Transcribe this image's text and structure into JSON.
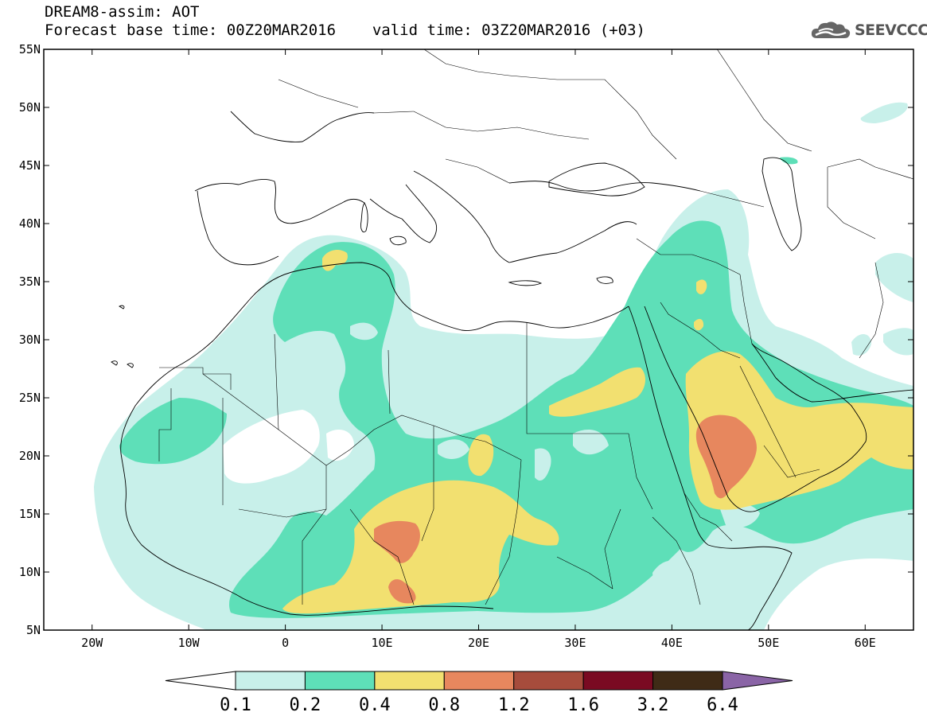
{
  "header": {
    "line1": "DREAM8-assim: AOT",
    "base_time": "Forecast base time: 00Z20MAR2016",
    "valid_time": "valid time: 03Z20MAR2016 (+03)"
  },
  "logo": {
    "text": "SEEVCCC",
    "icon": "cloud-icon"
  },
  "map": {
    "lon_range": [
      -25,
      65
    ],
    "lat_range": [
      5,
      55
    ],
    "lon_ticks": [
      {
        "value": -20,
        "label": "20W"
      },
      {
        "value": -10,
        "label": "10W"
      },
      {
        "value": 0,
        "label": "0"
      },
      {
        "value": 10,
        "label": "10E"
      },
      {
        "value": 20,
        "label": "20E"
      },
      {
        "value": 30,
        "label": "30E"
      },
      {
        "value": 40,
        "label": "40E"
      },
      {
        "value": 50,
        "label": "50E"
      },
      {
        "value": 60,
        "label": "60E"
      }
    ],
    "lat_ticks": [
      {
        "value": 5,
        "label": "5N"
      },
      {
        "value": 10,
        "label": "10N"
      },
      {
        "value": 15,
        "label": "15N"
      },
      {
        "value": 20,
        "label": "20N"
      },
      {
        "value": 25,
        "label": "25N"
      },
      {
        "value": 30,
        "label": "30N"
      },
      {
        "value": 35,
        "label": "35N"
      },
      {
        "value": 40,
        "label": "40N"
      },
      {
        "value": 45,
        "label": "45N"
      },
      {
        "value": 50,
        "label": "50N"
      },
      {
        "value": 55,
        "label": "55N"
      }
    ]
  },
  "colorbar": {
    "labels": [
      "0.1",
      "0.2",
      "0.4",
      "0.8",
      "1.2",
      "1.6",
      "3.2",
      "6.4"
    ],
    "colors": {
      "below": "#ffffff",
      "bins": [
        "#c8f0ea",
        "#5edfb8",
        "#f2e070",
        "#e7875e",
        "#a64c3c",
        "#7a0a22",
        "#3f2b16"
      ],
      "above": "#8a64a6"
    }
  }
}
